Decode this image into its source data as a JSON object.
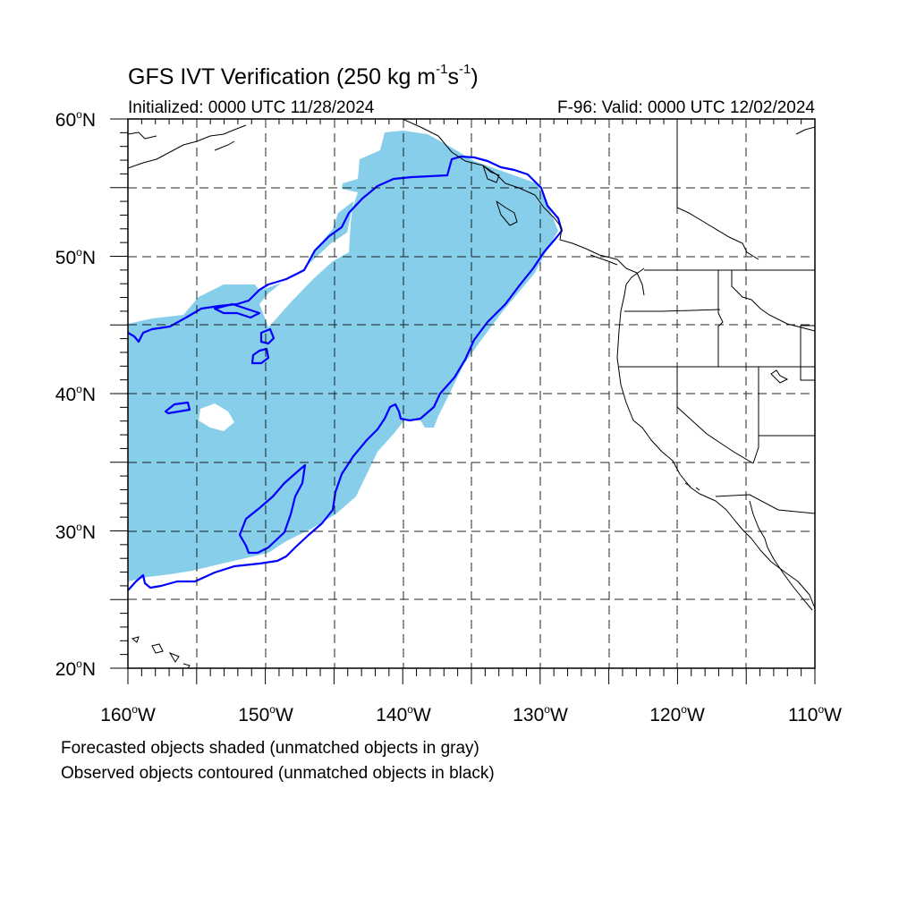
{
  "title": {
    "main": "GFS IVT Verification (250 kg m",
    "sup1": "-1",
    "mid": "s",
    "sup2": "-1",
    "end": ")"
  },
  "subtitle": {
    "initialized": "Initialized: 0000 UTC 11/28/2024",
    "valid": "F-96: Valid: 0000 UTC 12/02/2024"
  },
  "axes": {
    "lat_labels": [
      {
        "deg": "60",
        "suffix": "N"
      },
      {
        "deg": "50",
        "suffix": "N"
      },
      {
        "deg": "40",
        "suffix": "N"
      },
      {
        "deg": "30",
        "suffix": "N"
      },
      {
        "deg": "20",
        "suffix": "N"
      }
    ],
    "lon_labels": [
      {
        "deg": "160",
        "suffix": "W"
      },
      {
        "deg": "150",
        "suffix": "W"
      },
      {
        "deg": "140",
        "suffix": "W"
      },
      {
        "deg": "130",
        "suffix": "W"
      },
      {
        "deg": "120",
        "suffix": "W"
      },
      {
        "deg": "110",
        "suffix": "W"
      }
    ],
    "lat_range": [
      20,
      60
    ],
    "lon_range": [
      -160,
      -110
    ],
    "grid": "dashed every 5 degrees"
  },
  "legend": {
    "line1": "Forecasted objects shaded (unmatched objects in gray)",
    "line2": "Observed objects contoured (unmatched objects in black)"
  },
  "colors": {
    "forecast_fill": "#87ceeb",
    "observed_contour": "#0000ff",
    "coastline": "#000000",
    "grid": "#000000"
  }
}
